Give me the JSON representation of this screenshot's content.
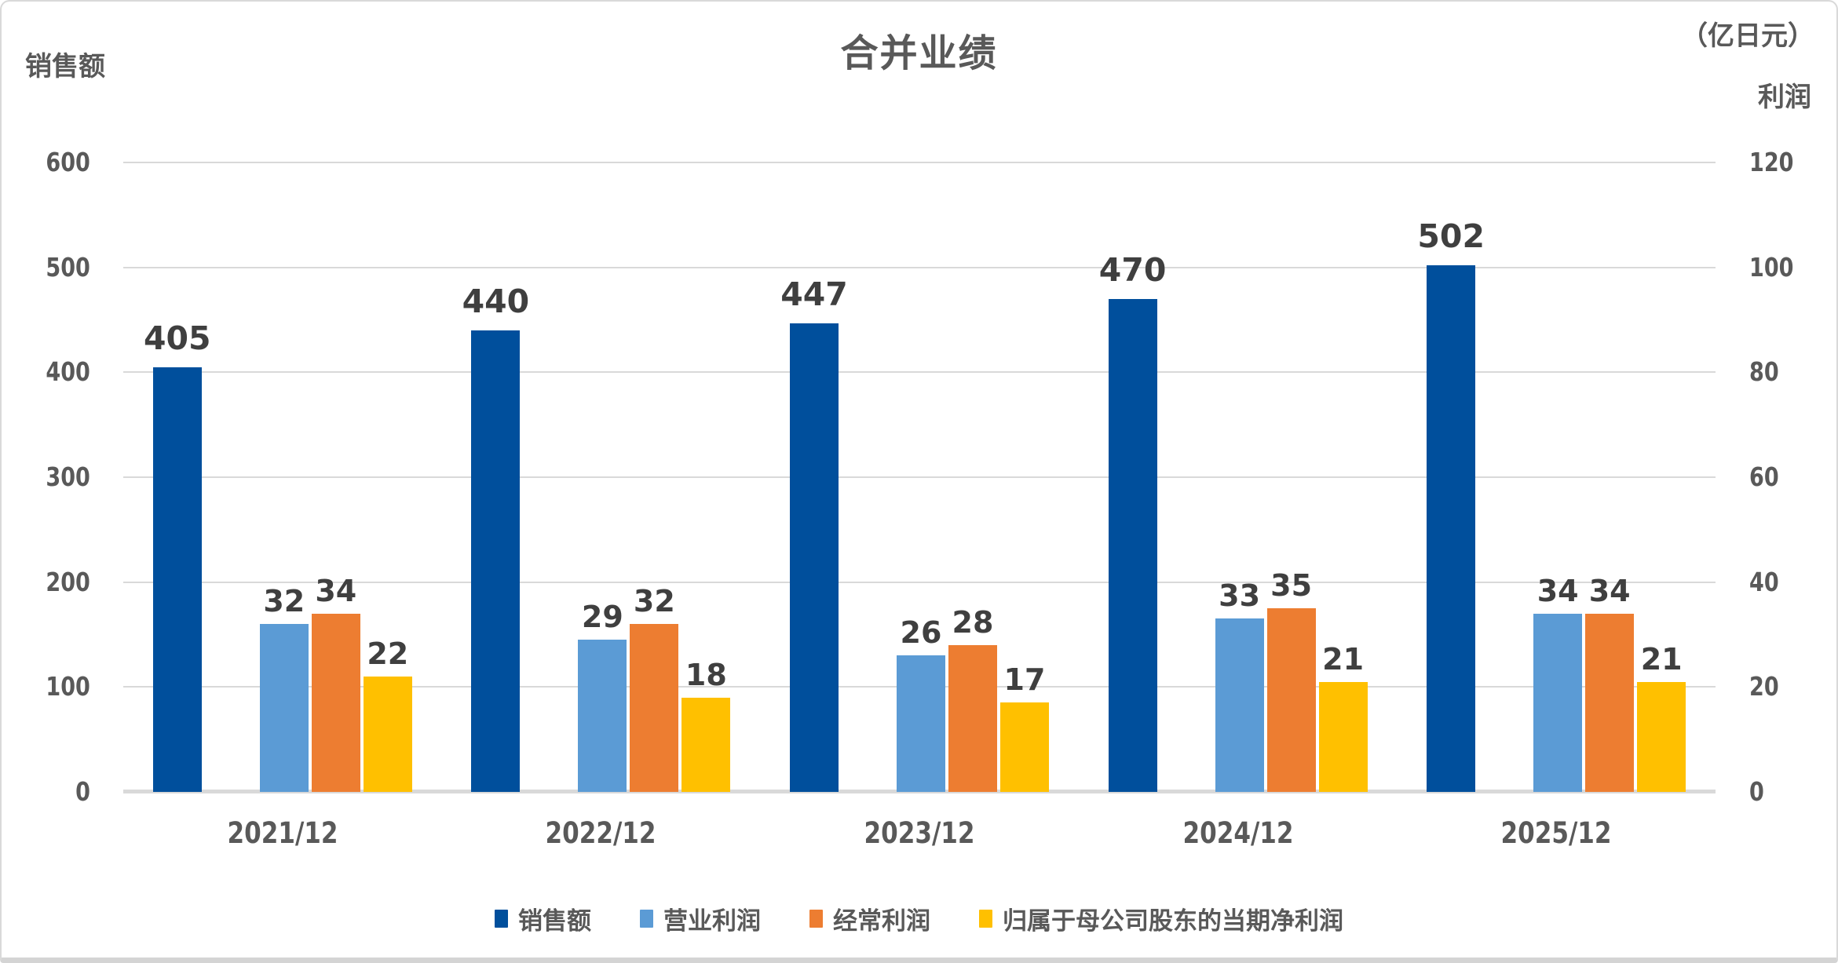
{
  "title": "合并业绩",
  "unit_label": "（亿日元）",
  "left_axis_title": "销售额",
  "right_axis_title": "利润",
  "colors": {
    "sales": "#004F9C",
    "operating_profit": "#5B9BD5",
    "ordinary_profit": "#ED7D31",
    "net_profit": "#FFC000",
    "gridline": "#D9D9D9",
    "axis_text": "#595959",
    "data_label_text": "#3F3F3F"
  },
  "chart_data": {
    "type": "bar",
    "title": "合并业绩",
    "categories": [
      "2021/12",
      "2022/12",
      "2023/12",
      "2024/12",
      "2025/12"
    ],
    "series": [
      {
        "name": "销售额",
        "axis": "left",
        "color": "#004F9C",
        "values": [
          405,
          440,
          447,
          470,
          502
        ]
      },
      {
        "name": "营业利润",
        "axis": "right",
        "color": "#5B9BD5",
        "values": [
          32,
          29,
          26,
          33,
          34
        ]
      },
      {
        "name": "经常利润",
        "axis": "right",
        "color": "#ED7D31",
        "values": [
          34,
          32,
          28,
          35,
          34
        ]
      },
      {
        "name": "归属于母公司股东的当期净利润",
        "axis": "right",
        "color": "#FFC000",
        "values": [
          22,
          18,
          17,
          21,
          21
        ]
      }
    ],
    "left_axis": {
      "title": "销售额",
      "min": 0,
      "max": 600,
      "step": 100,
      "ticks": [
        600,
        500,
        400,
        300,
        200,
        100,
        0
      ]
    },
    "right_axis": {
      "title": "利润",
      "min": 0,
      "max": 120,
      "step": 20,
      "ticks": [
        120,
        100,
        80,
        60,
        40,
        20,
        0
      ]
    },
    "unit": "（亿日元）",
    "grid": true,
    "legend_position": "bottom"
  }
}
